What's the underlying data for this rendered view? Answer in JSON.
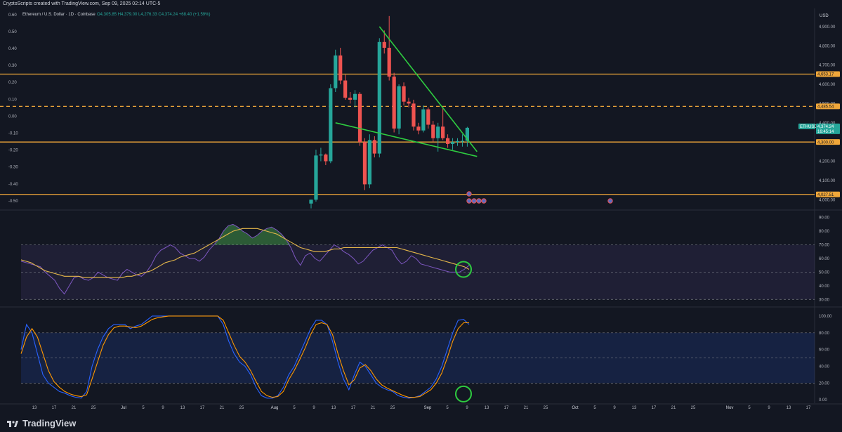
{
  "header": {
    "credit": "CryptoScripts created with TradingView.com, Sep 09, 2025 02:14 UTC-5",
    "symbol": "Ethereum / U.S. Dollar · 1D · Coinbase",
    "ohlc": "O4,305.85  H4,379.00  L4,276.33  C4,374.24  +68.40 (+1.59%)"
  },
  "footer": {
    "brand": "TradingView"
  },
  "colors": {
    "background": "#131722",
    "bull": "#26a69a",
    "bear": "#ef5350",
    "level": "#f0a73a",
    "trend": "#2ecc40",
    "rsi": "#7e57c2",
    "rsi_ma": "#e6b84a",
    "stoch_k": "#2962ff",
    "stoch_d": "#ff9800"
  },
  "chart_data": [
    {
      "type": "candlestick",
      "pane": "price",
      "title": "Ethereum / U.S. Dollar · 1D · Coinbase",
      "currency_label": "USD",
      "ylim": [
        3950,
        4980
      ],
      "right_axis_ticks": [
        "4,900.00",
        "4,800.00",
        "4,700.00",
        "4,600.00",
        "4,500.00",
        "4,400.00",
        "4,200.00",
        "4,100.00",
        "4,000.00"
      ],
      "left_axis_ticks": [
        "0.60",
        "0.50",
        "0.40",
        "0.30",
        "0.20",
        "0.10",
        "0.00",
        "-0.10",
        "-0.20",
        "-0.30",
        "-0.40",
        "-0.50"
      ],
      "left_axis_range": [
        -0.55,
        0.62
      ],
      "x_dates": [
        "Aug 7",
        "Aug 8",
        "Aug 9",
        "Aug 10",
        "Aug 11",
        "Aug 12",
        "Aug 13",
        "Aug 14",
        "Aug 15",
        "Aug 16",
        "Aug 17",
        "Aug 18",
        "Aug 19",
        "Aug 20",
        "Aug 21",
        "Aug 22",
        "Aug 23",
        "Aug 24",
        "Aug 25",
        "Aug 26",
        "Aug 27",
        "Aug 28",
        "Aug 29",
        "Aug 30",
        "Aug 31",
        "Sep 1",
        "Sep 2",
        "Sep 3",
        "Sep 4",
        "Sep 5",
        "Sep 6",
        "Sep 7",
        "Sep 8"
      ],
      "candles": [
        {
          "o": 3980,
          "h": 4000,
          "l": 3955,
          "c": 4000
        },
        {
          "o": 4000,
          "h": 4260,
          "l": 3990,
          "c": 4230
        },
        {
          "o": 4230,
          "h": 4270,
          "l": 4200,
          "c": 4235
        },
        {
          "o": 4235,
          "h": 4240,
          "l": 4180,
          "c": 4200
        },
        {
          "o": 4200,
          "h": 4600,
          "l": 4190,
          "c": 4580
        },
        {
          "o": 4580,
          "h": 4780,
          "l": 4560,
          "c": 4750
        },
        {
          "o": 4750,
          "h": 4790,
          "l": 4600,
          "c": 4620
        },
        {
          "o": 4620,
          "h": 4650,
          "l": 4520,
          "c": 4530
        },
        {
          "o": 4530,
          "h": 4560,
          "l": 4500,
          "c": 4520
        },
        {
          "o": 4520,
          "h": 4570,
          "l": 4480,
          "c": 4550
        },
        {
          "o": 4550,
          "h": 4560,
          "l": 4280,
          "c": 4300
        },
        {
          "o": 4300,
          "h": 4320,
          "l": 4050,
          "c": 4080
        },
        {
          "o": 4080,
          "h": 4340,
          "l": 4060,
          "c": 4310
        },
        {
          "o": 4310,
          "h": 4330,
          "l": 4220,
          "c": 4240
        },
        {
          "o": 4240,
          "h": 4840,
          "l": 4220,
          "c": 4820
        },
        {
          "o": 4820,
          "h": 4880,
          "l": 4760,
          "c": 4790
        },
        {
          "o": 4790,
          "h": 4955,
          "l": 4620,
          "c": 4640
        },
        {
          "o": 4640,
          "h": 4660,
          "l": 4350,
          "c": 4370
        },
        {
          "o": 4370,
          "h": 4600,
          "l": 4340,
          "c": 4590
        },
        {
          "o": 4590,
          "h": 4610,
          "l": 4490,
          "c": 4510
        },
        {
          "o": 4510,
          "h": 4530,
          "l": 4480,
          "c": 4500
        },
        {
          "o": 4500,
          "h": 4520,
          "l": 4360,
          "c": 4380
        },
        {
          "o": 4380,
          "h": 4400,
          "l": 4340,
          "c": 4360
        },
        {
          "o": 4360,
          "h": 4490,
          "l": 4350,
          "c": 4470
        },
        {
          "o": 4470,
          "h": 4480,
          "l": 4370,
          "c": 4390
        },
        {
          "o": 4390,
          "h": 4410,
          "l": 4300,
          "c": 4320
        },
        {
          "o": 4320,
          "h": 4400,
          "l": 4250,
          "c": 4380
        },
        {
          "o": 4380,
          "h": 4480,
          "l": 4310,
          "c": 4320
        },
        {
          "o": 4320,
          "h": 4340,
          "l": 4270,
          "c": 4290
        },
        {
          "o": 4290,
          "h": 4320,
          "l": 4260,
          "c": 4300
        },
        {
          "o": 4300,
          "h": 4320,
          "l": 4280,
          "c": 4305
        },
        {
          "o": 4305,
          "h": 4340,
          "l": 4276,
          "c": 4306
        },
        {
          "o": 4306,
          "h": 4379,
          "l": 4276,
          "c": 4374
        }
      ],
      "levels": [
        {
          "value": 4653.17,
          "label": "4,653.17",
          "style": "solid"
        },
        {
          "value": 4485.54,
          "label": "4,485.54",
          "style": "dashed"
        },
        {
          "value": 4300.0,
          "label": "4,300.00",
          "style": "solid"
        },
        {
          "value": 4027.51,
          "label": "4,027.51",
          "style": "solid"
        }
      ],
      "price_tag": {
        "symbol": "ETHUSD",
        "price": "4,374.24",
        "countdown": "16:45:14"
      },
      "trendlines": [
        {
          "from": {
            "date": "Aug 21",
            "price": 4900
          },
          "to": {
            "date": "Sep 10",
            "price": 4250
          }
        },
        {
          "from": {
            "date": "Aug 12",
            "price": 4400
          },
          "to": {
            "date": "Sep 10",
            "price": 4225
          }
        }
      ]
    },
    {
      "type": "line",
      "pane": "rsi",
      "ylim": [
        25,
        95
      ],
      "axis_ticks": [
        "90.00",
        "80.00",
        "70.00",
        "60.00",
        "50.00",
        "40.00",
        "30.00"
      ],
      "band": [
        30,
        70
      ],
      "series": [
        {
          "values": [
            58,
            57,
            56,
            55,
            54,
            50,
            47,
            44,
            38,
            34,
            40,
            46,
            47,
            45,
            44,
            46,
            50,
            48,
            46,
            45,
            44,
            49,
            52,
            50,
            48,
            47,
            50,
            55,
            62,
            66,
            68,
            70,
            68,
            64,
            62,
            60,
            60,
            58,
            61,
            66,
            70,
            74,
            80,
            84,
            85,
            83,
            80,
            78,
            75,
            77,
            80,
            82,
            83,
            81,
            78,
            74,
            68,
            60,
            55,
            62,
            64,
            60,
            58,
            62,
            66,
            70,
            68,
            65,
            63,
            60,
            56,
            58,
            62,
            66,
            68,
            70,
            68,
            66,
            60,
            56,
            58,
            62,
            60,
            56,
            55,
            54,
            53,
            52,
            51,
            50,
            50,
            50,
            52,
            55
          ]
        },
        {
          "values": [
            59,
            58,
            57,
            55,
            53,
            51,
            50,
            49,
            48,
            47,
            47,
            47,
            47,
            46,
            46,
            46,
            46,
            46,
            46,
            46,
            46,
            46,
            47,
            47,
            48,
            49,
            50,
            51,
            53,
            55,
            57,
            58,
            59,
            61,
            62,
            63,
            64,
            66,
            68,
            70,
            72,
            74,
            76,
            78,
            80,
            81,
            82,
            82,
            82,
            82,
            81,
            80,
            79,
            78,
            76,
            74,
            72,
            70,
            68,
            67,
            66,
            65,
            65,
            65,
            66,
            67,
            67,
            68,
            68,
            68,
            68,
            68,
            68,
            68,
            68,
            68,
            68,
            68,
            68,
            67,
            66,
            65,
            64,
            63,
            62,
            61,
            60,
            59,
            58,
            57,
            56,
            55,
            54,
            52
          ]
        }
      ]
    },
    {
      "type": "line",
      "pane": "stoch_rsi",
      "ylim": [
        -4,
        110
      ],
      "axis_ticks": [
        "100.00",
        "80.00",
        "60.00",
        "40.00",
        "20.00",
        "0.00"
      ],
      "band": [
        20,
        80
      ],
      "series": [
        {
          "values": [
            60,
            90,
            80,
            55,
            30,
            20,
            15,
            10,
            8,
            5,
            3,
            2,
            10,
            40,
            60,
            75,
            85,
            90,
            90,
            90,
            85,
            88,
            90,
            95,
            100,
            100,
            100,
            100,
            100,
            100,
            100,
            100,
            100,
            100,
            100,
            100,
            100,
            90,
            70,
            55,
            45,
            40,
            30,
            15,
            5,
            2,
            2,
            5,
            15,
            30,
            40,
            55,
            70,
            85,
            95,
            95,
            90,
            70,
            45,
            25,
            12,
            30,
            45,
            40,
            30,
            20,
            15,
            12,
            10,
            5,
            3,
            2,
            3,
            5,
            10,
            15,
            25,
            40,
            60,
            80,
            95,
            96,
            90
          ]
        },
        {
          "values": [
            55,
            75,
            85,
            75,
            55,
            35,
            22,
            15,
            10,
            7,
            5,
            4,
            6,
            25,
            45,
            65,
            78,
            86,
            88,
            88,
            87,
            86,
            88,
            92,
            96,
            98,
            99,
            100,
            100,
            100,
            100,
            100,
            100,
            100,
            100,
            100,
            100,
            95,
            80,
            65,
            52,
            45,
            35,
            22,
            10,
            5,
            3,
            4,
            10,
            24,
            35,
            48,
            62,
            78,
            90,
            92,
            90,
            78,
            55,
            35,
            18,
            24,
            38,
            42,
            35,
            25,
            18,
            14,
            11,
            8,
            5,
            3,
            3,
            4,
            8,
            12,
            20,
            32,
            50,
            70,
            85,
            92,
            92
          ]
        }
      ]
    }
  ],
  "x_axis_labels": [
    "13",
    "17",
    "21",
    "25",
    "Jul",
    "5",
    "9",
    "13",
    "17",
    "21",
    "25",
    "Aug",
    "5",
    "9",
    "13",
    "17",
    "21",
    "25",
    "Sep",
    "5",
    "9",
    "13",
    "17",
    "21",
    "25",
    "Oct",
    "5",
    "9",
    "13",
    "17",
    "21",
    "25",
    "Nov",
    "5",
    "9",
    "13",
    "17"
  ]
}
